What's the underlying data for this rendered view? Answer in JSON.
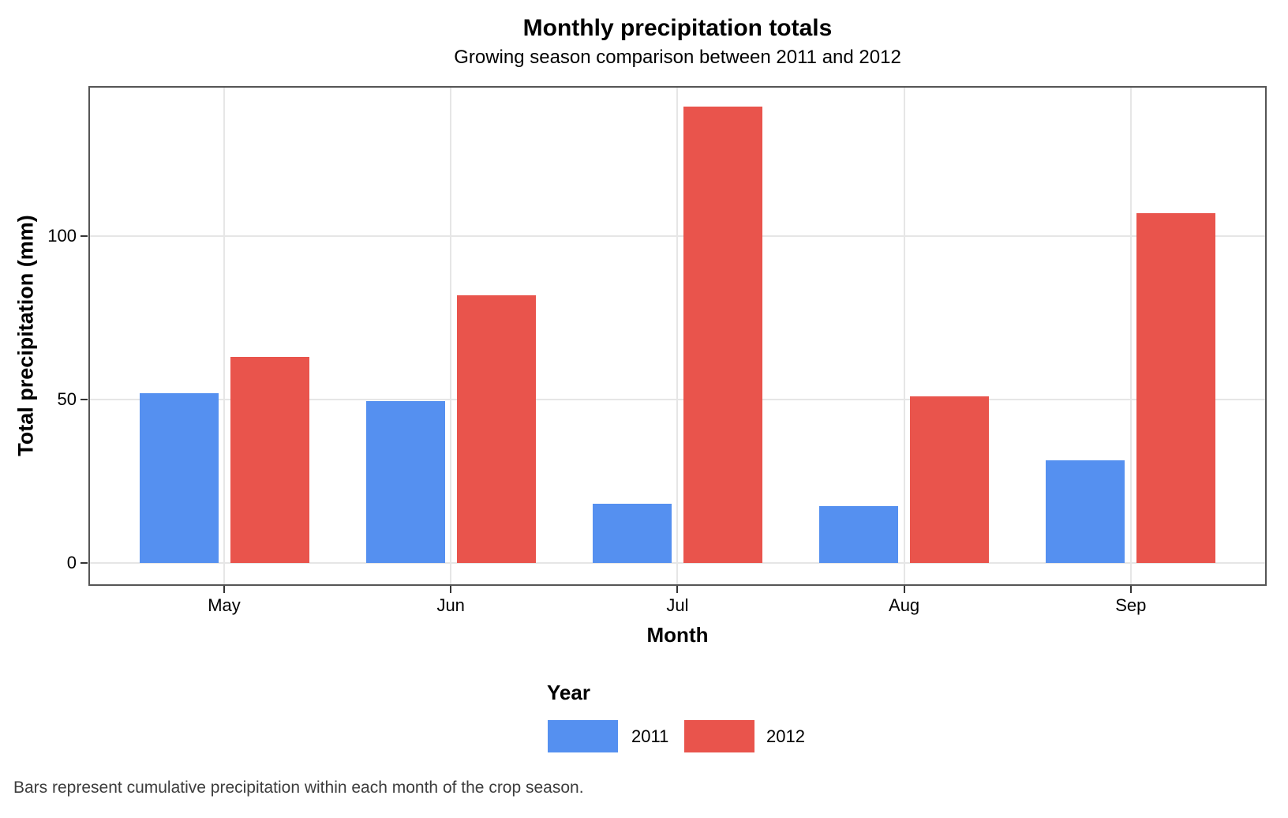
{
  "chart_data": {
    "type": "bar",
    "title": "Monthly precipitation totals",
    "subtitle": "Growing season comparison between 2011 and 2012",
    "xlabel": "Month",
    "ylabel": "Total precipitation (mm)",
    "caption": "Bars represent cumulative precipitation within each month of the crop season.",
    "categories": [
      "May",
      "Jun",
      "Jul",
      "Aug",
      "Sep"
    ],
    "series": [
      {
        "name": "2011",
        "color": "#5590F0",
        "values": [
          52,
          49.5,
          18,
          17.5,
          31.5
        ]
      },
      {
        "name": "2012",
        "color": "#E9544C",
        "values": [
          63,
          82,
          139.5,
          51,
          107
        ]
      }
    ],
    "legend": {
      "title": "Year",
      "position": "bottom"
    },
    "y_ticks": [
      0,
      50,
      100
    ],
    "ylim": [
      0,
      146
    ],
    "grid": "major-only",
    "panel_border": true,
    "colors": {
      "gridline": "#E6E6E6",
      "panel_border": "#555555",
      "tick_mark": "#333333",
      "caption_text": "#3D3D3D"
    }
  }
}
